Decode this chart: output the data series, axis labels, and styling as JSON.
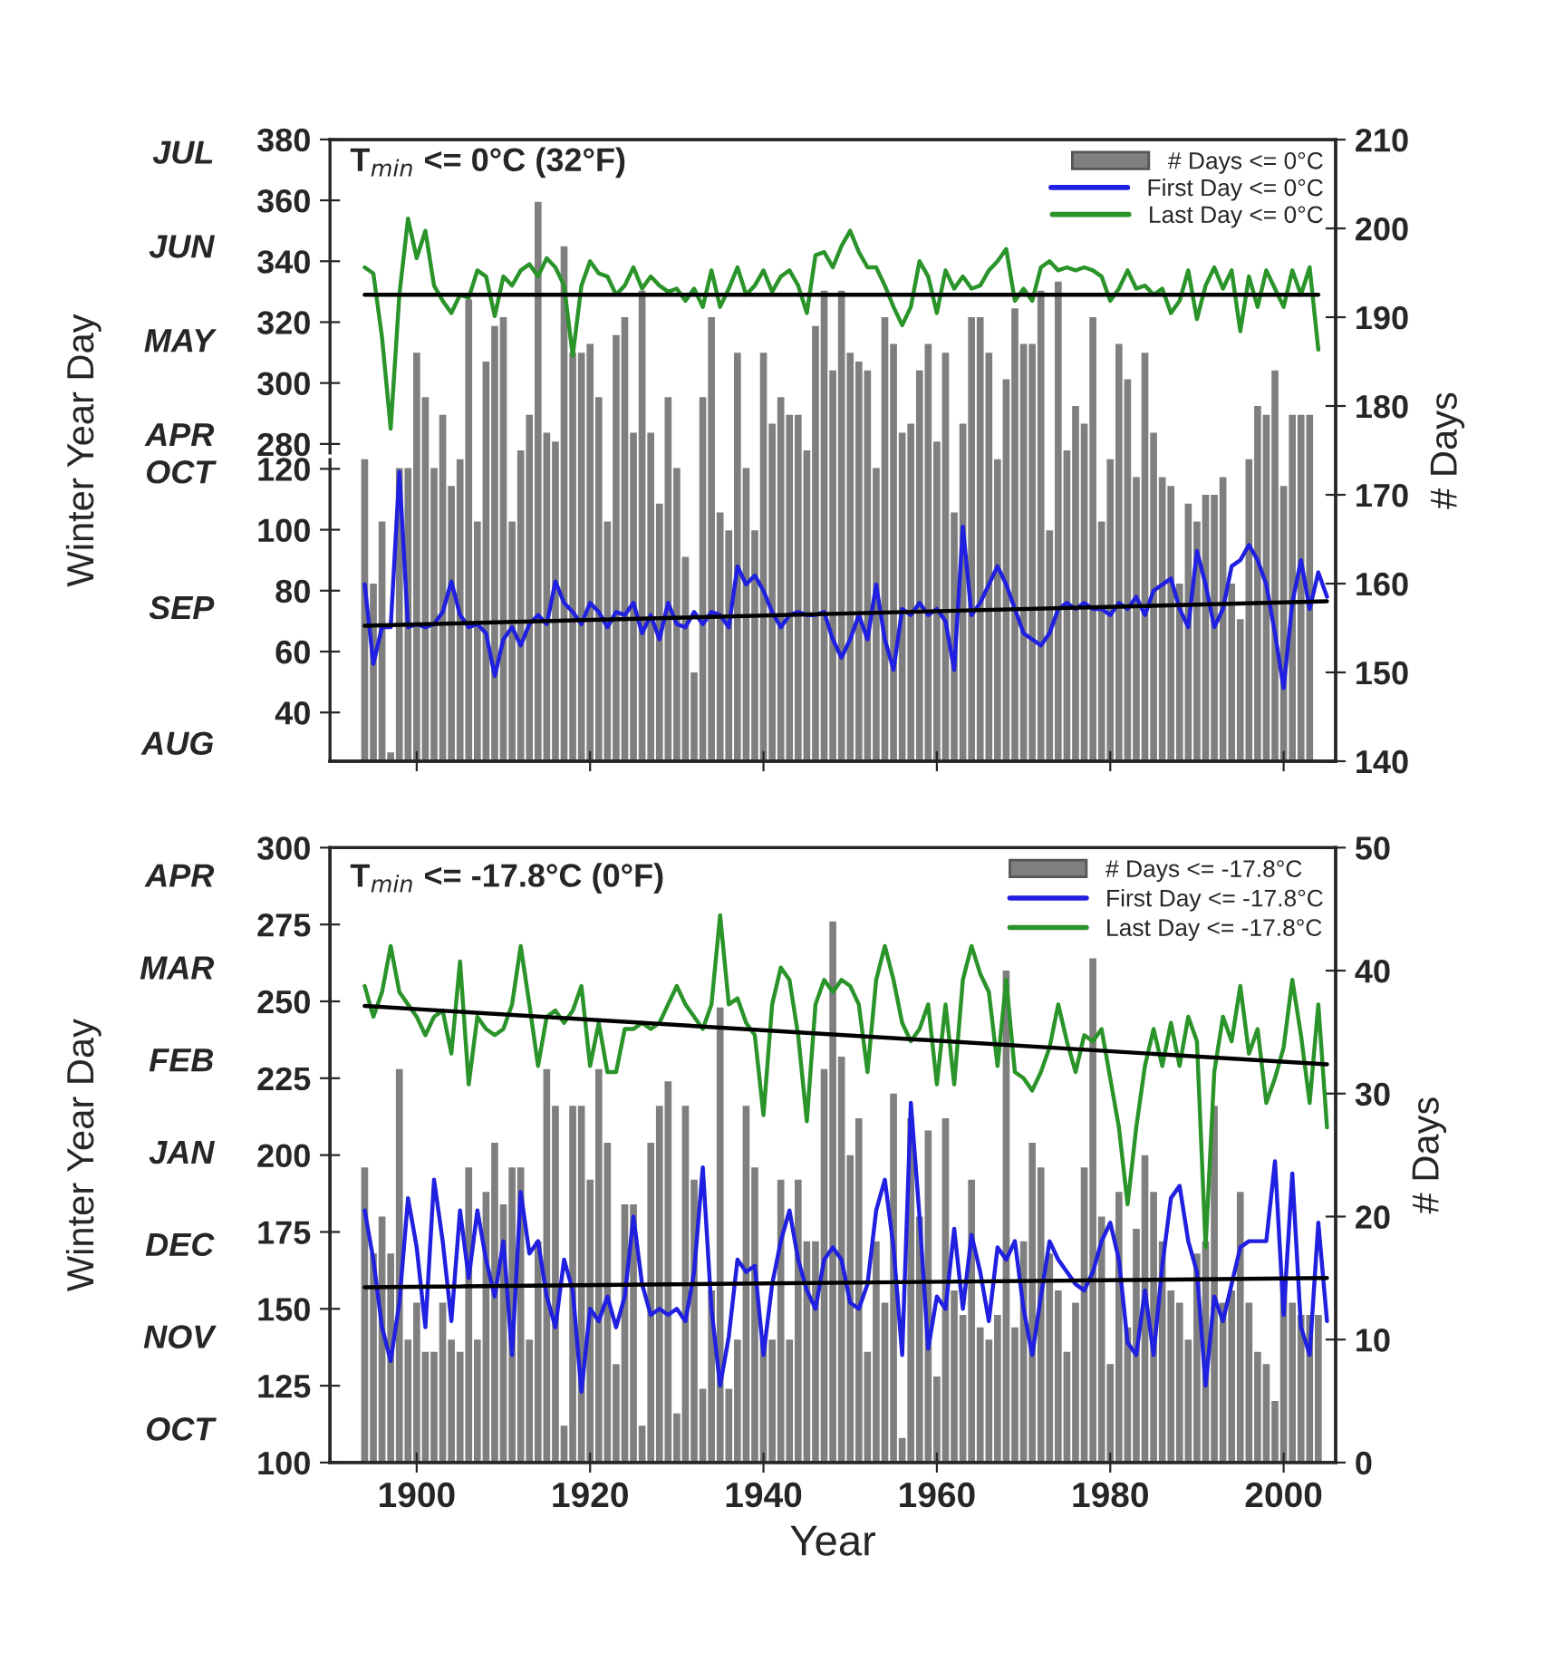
{
  "chart_data": [
    {
      "type": "bar",
      "xlim": [
        1890,
        2006
      ],
      "xticks": [
        1900,
        1920,
        1940,
        1960,
        1980,
        2000
      ],
      "tick_labels": "y",
      "ylabel": "Winter Year Day",
      "y2label": "# Days",
      "y2lim": [
        140,
        210
      ],
      "y2ticks": [
        140,
        150,
        160,
        170,
        180,
        190,
        200,
        210
      ],
      "legend": "top right",
      "series": [
        {
          "name": "# Days <= 0°C",
          "axis": "y2",
          "color": "#7f7f7f",
          "x": [
            1894,
            1895,
            1896,
            1897,
            1898,
            1899,
            1900,
            1901,
            1902,
            1903,
            1904,
            1905,
            1906,
            1907,
            1908,
            1909,
            1910,
            1911,
            1912,
            1913,
            1914,
            1915,
            1916,
            1917,
            1918,
            1919,
            1920,
            1921,
            1922,
            1923,
            1924,
            1925,
            1926,
            1927,
            1928,
            1929,
            1930,
            1931,
            1932,
            1933,
            1934,
            1935,
            1936,
            1937,
            1938,
            1939,
            1940,
            1941,
            1942,
            1943,
            1944,
            1945,
            1946,
            1947,
            1948,
            1949,
            1950,
            1951,
            1952,
            1953,
            1954,
            1955,
            1956,
            1957,
            1958,
            1959,
            1960,
            1961,
            1962,
            1963,
            1964,
            1965,
            1966,
            1967,
            1968,
            1969,
            1970,
            1971,
            1972,
            1973,
            1974,
            1975,
            1976,
            1977,
            1978,
            1979,
            1980,
            1981,
            1982,
            1983,
            1984,
            1985,
            1986,
            1987,
            1988,
            1989,
            1990,
            1991,
            1992,
            1993,
            1994,
            1995,
            1996,
            1997,
            1998,
            1999,
            2000,
            2001,
            2002,
            2003
          ],
          "values": [
            174,
            160,
            167,
            141,
            173,
            173,
            186,
            181,
            173,
            179,
            171,
            174,
            192,
            167,
            185,
            189,
            190,
            167,
            175,
            179,
            203,
            177,
            176,
            198,
            186,
            186,
            187,
            181,
            167,
            188,
            190,
            177,
            193,
            177,
            169,
            181,
            173,
            163,
            150,
            181,
            190,
            168,
            166,
            186,
            173,
            166,
            186,
            178,
            181,
            179,
            179,
            175,
            189,
            193,
            184,
            193,
            186,
            185,
            184,
            173,
            190,
            187,
            177,
            178,
            184,
            187,
            176,
            186,
            168,
            178,
            190,
            190,
            186,
            174,
            183,
            191,
            187,
            187,
            193,
            166,
            194,
            175,
            180,
            178,
            190,
            167,
            174,
            187,
            183,
            172,
            186,
            177,
            172,
            171,
            160,
            169,
            167,
            170,
            170,
            172,
            160,
            156,
            174,
            180,
            179,
            184,
            171,
            179,
            179,
            179
          ]
        }
      ]
    },
    {
      "type": "line",
      "xlim": [
        1890,
        2006
      ],
      "tick_labels": "y",
      "ylim": [
        24,
        123
      ],
      "yticks": [
        40,
        60,
        80,
        100,
        120
      ],
      "annotations": [
        "OCT",
        "SEP",
        "AUG"
      ],
      "legend": "top right",
      "series": [
        {
          "name": "First Day <= 0°C",
          "color": "#2020e0",
          "x": [
            1894,
            1895,
            1896,
            1897,
            1898,
            1899,
            1900,
            1901,
            1902,
            1903,
            1904,
            1905,
            1906,
            1907,
            1908,
            1909,
            1910,
            1911,
            1912,
            1913,
            1914,
            1915,
            1916,
            1917,
            1918,
            1919,
            1920,
            1921,
            1922,
            1923,
            1924,
            1925,
            1926,
            1927,
            1928,
            1929,
            1930,
            1931,
            1932,
            1933,
            1934,
            1935,
            1936,
            1937,
            1938,
            1939,
            1940,
            1941,
            1942,
            1943,
            1944,
            1945,
            1946,
            1947,
            1948,
            1949,
            1950,
            1951,
            1952,
            1953,
            1954,
            1955,
            1956,
            1957,
            1958,
            1959,
            1960,
            1961,
            1962,
            1963,
            1964,
            1965,
            1966,
            1967,
            1968,
            1969,
            1970,
            1971,
            1972,
            1973,
            1974,
            1975,
            1976,
            1977,
            1978,
            1979,
            1980,
            1981,
            1982,
            1983,
            1984,
            1985,
            1986,
            1987,
            1988,
            1989,
            1990,
            1991,
            1992,
            1993,
            1994,
            1995,
            1996,
            1997,
            1998,
            1999,
            2000,
            2001,
            2002,
            2003,
            2004,
            2005
          ],
          "values": [
            82,
            56,
            68,
            68,
            119,
            68,
            69,
            68,
            69,
            73,
            83,
            72,
            68,
            69,
            66,
            52,
            64,
            68,
            62,
            69,
            72,
            69,
            83,
            76,
            73,
            69,
            76,
            73,
            68,
            73,
            72,
            76,
            66,
            72,
            64,
            76,
            69,
            68,
            73,
            69,
            73,
            72,
            68,
            88,
            82,
            85,
            80,
            73,
            68,
            72,
            73,
            72,
            72,
            73,
            64,
            58,
            64,
            72,
            64,
            82,
            64,
            54,
            74,
            72,
            76,
            72,
            74,
            70,
            54,
            101,
            72,
            76,
            82,
            88,
            82,
            74,
            66,
            64,
            62,
            66,
            74,
            76,
            74,
            76,
            74,
            74,
            72,
            76,
            74,
            78,
            72,
            80,
            82,
            84,
            74,
            68,
            93,
            82,
            68,
            74,
            88,
            90,
            95,
            90,
            82,
            66,
            48,
            76,
            90,
            74,
            86,
            78
          ]
        },
        {
          "color": "#000000",
          "x": [
            1894,
            2005
          ],
          "values": [
            68.5,
            76.5
          ]
        }
      ]
    },
    {
      "type": "line",
      "xlim": [
        1890,
        2006
      ],
      "tick_labels": "y",
      "ylim": [
        277,
        380
      ],
      "yticks": [
        280,
        300,
        320,
        340,
        360,
        380
      ],
      "title": "T$_{min}$ <= 0°C (32°F)",
      "annotations": [
        "JUL",
        "JUN",
        "MAY",
        "APR"
      ],
      "legend": "top right",
      "series": [
        {
          "name": "Last Day <= 0°C",
          "color": "#2a942a",
          "x": [
            1894,
            1895,
            1896,
            1897,
            1898,
            1899,
            1900,
            1901,
            1902,
            1903,
            1904,
            1905,
            1906,
            1907,
            1908,
            1909,
            1910,
            1911,
            1912,
            1913,
            1914,
            1915,
            1916,
            1917,
            1918,
            1919,
            1920,
            1921,
            1922,
            1923,
            1924,
            1925,
            1926,
            1927,
            1928,
            1929,
            1930,
            1931,
            1932,
            1933,
            1934,
            1935,
            1936,
            1937,
            1938,
            1939,
            1940,
            1941,
            1942,
            1943,
            1944,
            1945,
            1946,
            1947,
            1948,
            1949,
            1950,
            1951,
            1952,
            1953,
            1954,
            1955,
            1956,
            1957,
            1958,
            1959,
            1960,
            1961,
            1962,
            1963,
            1964,
            1965,
            1966,
            1967,
            1968,
            1969,
            1970,
            1971,
            1972,
            1973,
            1974,
            1975,
            1976,
            1977,
            1978,
            1979,
            1980,
            1981,
            1982,
            1983,
            1984,
            1985,
            1986,
            1987,
            1988,
            1989,
            1990,
            1991,
            1992,
            1993,
            1994,
            1995,
            1996,
            1997,
            1998,
            1999,
            2000,
            2001,
            2002,
            2003,
            2004
          ],
          "values": [
            338,
            336,
            315,
            285,
            329,
            354,
            341,
            350,
            332,
            327,
            323,
            329,
            328,
            337,
            335,
            322,
            335,
            332,
            337,
            339,
            335,
            341,
            338,
            332,
            309,
            332,
            340,
            336,
            335,
            329,
            332,
            338,
            331,
            335,
            332,
            330,
            331,
            327,
            331,
            325,
            337,
            325,
            331,
            338,
            329,
            332,
            337,
            330,
            335,
            337,
            332,
            323,
            342,
            343,
            338,
            345,
            350,
            343,
            338,
            338,
            332,
            325,
            319,
            325,
            340,
            335,
            323,
            337,
            331,
            335,
            331,
            332,
            337,
            340,
            344,
            327,
            331,
            327,
            338,
            340,
            337,
            338,
            337,
            338,
            337,
            335,
            327,
            331,
            337,
            331,
            332,
            329,
            331,
            323,
            327,
            337,
            321,
            332,
            338,
            331,
            337,
            317,
            335,
            325,
            337,
            331,
            325,
            337,
            329,
            338,
            311
          ]
        },
        {
          "color": "#000000",
          "x": [
            1894,
            2004
          ],
          "values": [
            329,
            329
          ]
        }
      ]
    },
    {
      "type": "bar",
      "title": "T$_{min}$ <= -17.8°C (0°F)",
      "annotations": [
        "APR",
        "MAR",
        "FEB",
        "JAN",
        "DEC",
        "NOV",
        "OCT"
      ],
      "xlim": [
        1890,
        2006
      ],
      "xticks": [
        1900,
        1920,
        1940,
        1960,
        1980,
        2000
      ],
      "xlabel": "Year",
      "ylabel": "Winter Year Day",
      "y2label": "# Days",
      "ylim": [
        100,
        300
      ],
      "yticks": [
        100,
        125,
        150,
        175,
        200,
        225,
        250,
        275,
        300
      ],
      "y2lim": [
        0,
        50
      ],
      "y2ticks": [
        0,
        10,
        20,
        30,
        40,
        50
      ],
      "legend": "top right",
      "series": [
        {
          "name": "# Days <= -17.8°C",
          "axis": "y2",
          "color": "#7f7f7f",
          "x": [
            1894,
            1895,
            1896,
            1897,
            1898,
            1899,
            1900,
            1901,
            1902,
            1903,
            1904,
            1905,
            1906,
            1907,
            1908,
            1909,
            1910,
            1911,
            1912,
            1913,
            1914,
            1915,
            1916,
            1917,
            1918,
            1919,
            1920,
            1921,
            1922,
            1923,
            1924,
            1925,
            1926,
            1927,
            1928,
            1929,
            1930,
            1931,
            1932,
            1933,
            1934,
            1935,
            1936,
            1937,
            1938,
            1939,
            1940,
            1941,
            1942,
            1943,
            1944,
            1945,
            1946,
            1947,
            1948,
            1949,
            1950,
            1951,
            1952,
            1953,
            1954,
            1955,
            1956,
            1957,
            1958,
            1959,
            1960,
            1961,
            1962,
            1963,
            1964,
            1965,
            1966,
            1967,
            1968,
            1969,
            1970,
            1971,
            1972,
            1973,
            1974,
            1975,
            1976,
            1977,
            1978,
            1979,
            1980,
            1981,
            1982,
            1983,
            1984,
            1985,
            1986,
            1987,
            1988,
            1989,
            1990,
            1991,
            1992,
            1993,
            1994,
            1995,
            1996,
            1997,
            1998,
            1999,
            2000,
            2001,
            2002,
            2003,
            2004
          ],
          "values": [
            24,
            17,
            20,
            17,
            32,
            10,
            13,
            9,
            9,
            13,
            10,
            9,
            24,
            10,
            22,
            26,
            21,
            24,
            24,
            10,
            18,
            32,
            29,
            3,
            29,
            29,
            23,
            32,
            26,
            8,
            21,
            21,
            3,
            26,
            29,
            31,
            4,
            29,
            23,
            6,
            14,
            37,
            6,
            10,
            29,
            24,
            10,
            10,
            23,
            10,
            23,
            18,
            18,
            32,
            44,
            33,
            25,
            28,
            9,
            18,
            13,
            30,
            2,
            28,
            20,
            27,
            7,
            28,
            14,
            12,
            23,
            11,
            10,
            12,
            40,
            11,
            18,
            26,
            24,
            17,
            14,
            9,
            13,
            24,
            41,
            20,
            8,
            22,
            11,
            19,
            25,
            22,
            18,
            14,
            13,
            10,
            17,
            18,
            29,
            13,
            14,
            22,
            13,
            9,
            8,
            5,
            15,
            13,
            12,
            12,
            12
          ]
        },
        {
          "name": "First Day <= -17.8°C",
          "type": "line",
          "axis": "y",
          "color": "#2020e0",
          "x": [
            1894,
            1895,
            1896,
            1897,
            1898,
            1899,
            1900,
            1901,
            1902,
            1903,
            1904,
            1905,
            1906,
            1907,
            1908,
            1909,
            1910,
            1911,
            1912,
            1913,
            1914,
            1915,
            1916,
            1917,
            1918,
            1919,
            1920,
            1921,
            1922,
            1923,
            1924,
            1925,
            1926,
            1927,
            1928,
            1929,
            1930,
            1931,
            1932,
            1933,
            1934,
            1935,
            1936,
            1937,
            1938,
            1939,
            1940,
            1941,
            1942,
            1943,
            1944,
            1945,
            1946,
            1947,
            1948,
            1949,
            1950,
            1951,
            1952,
            1953,
            1954,
            1955,
            1956,
            1957,
            1958,
            1959,
            1960,
            1961,
            1962,
            1963,
            1964,
            1965,
            1966,
            1967,
            1968,
            1969,
            1970,
            1971,
            1972,
            1973,
            1974,
            1975,
            1976,
            1977,
            1978,
            1979,
            1980,
            1981,
            1982,
            1983,
            1984,
            1985,
            1986,
            1987,
            1988,
            1989,
            1990,
            1991,
            1992,
            1993,
            1994,
            1995,
            1996,
            1997,
            1998,
            1999,
            2000,
            2001,
            2002,
            2003,
            2004,
            2005
          ],
          "values": [
            182,
            166,
            144,
            133,
            152,
            186,
            170,
            144,
            192,
            172,
            146,
            182,
            160,
            182,
            166,
            154,
            172,
            135,
            188,
            168,
            172,
            154,
            144,
            166,
            156,
            123,
            150,
            146,
            154,
            144,
            154,
            180,
            158,
            148,
            150,
            148,
            150,
            146,
            162,
            196,
            150,
            125,
            141,
            166,
            162,
            164,
            135,
            158,
            172,
            182,
            166,
            156,
            150,
            166,
            170,
            166,
            152,
            150,
            158,
            182,
            192,
            170,
            135,
            217,
            180,
            137,
            154,
            150,
            176,
            150,
            174,
            162,
            146,
            170,
            166,
            172,
            150,
            135,
            154,
            172,
            166,
            162,
            158,
            156,
            162,
            172,
            178,
            166,
            139,
            135,
            156,
            135,
            164,
            186,
            190,
            172,
            162,
            125,
            154,
            146,
            158,
            170,
            172,
            172,
            172,
            198,
            148,
            194,
            144,
            135,
            178,
            146
          ]
        },
        {
          "name": "Last Day <= -17.8°C",
          "type": "line",
          "axis": "y",
          "color": "#2a942a",
          "x": [
            1894,
            1895,
            1896,
            1897,
            1898,
            1899,
            1900,
            1901,
            1902,
            1903,
            1904,
            1905,
            1906,
            1907,
            1908,
            1909,
            1910,
            1911,
            1912,
            1913,
            1914,
            1915,
            1916,
            1917,
            1918,
            1919,
            1920,
            1921,
            1922,
            1923,
            1924,
            1925,
            1926,
            1927,
            1928,
            1929,
            1930,
            1931,
            1932,
            1933,
            1934,
            1935,
            1936,
            1937,
            1938,
            1939,
            1940,
            1941,
            1942,
            1943,
            1944,
            1945,
            1946,
            1947,
            1948,
            1949,
            1950,
            1951,
            1952,
            1953,
            1954,
            1955,
            1956,
            1957,
            1958,
            1959,
            1960,
            1961,
            1962,
            1963,
            1964,
            1965,
            1966,
            1967,
            1968,
            1969,
            1970,
            1971,
            1972,
            1973,
            1974,
            1975,
            1976,
            1977,
            1978,
            1979,
            1980,
            1981,
            1982,
            1983,
            1984,
            1985,
            1986,
            1987,
            1988,
            1989,
            1990,
            1991,
            1992,
            1993,
            1994,
            1995,
            1996,
            1997,
            1998,
            1999,
            2000,
            2001,
            2002,
            2003,
            2004,
            2005
          ],
          "values": [
            255,
            245,
            253,
            268,
            253,
            249,
            245,
            239,
            245,
            247,
            233,
            263,
            223,
            245,
            241,
            239,
            241,
            249,
            268,
            249,
            229,
            245,
            247,
            243,
            247,
            255,
            229,
            243,
            227,
            227,
            241,
            241,
            243,
            241,
            243,
            249,
            255,
            249,
            245,
            241,
            249,
            278,
            249,
            251,
            243,
            239,
            213,
            249,
            261,
            257,
            239,
            211,
            249,
            257,
            253,
            257,
            255,
            249,
            227,
            257,
            268,
            257,
            243,
            237,
            241,
            249,
            223,
            249,
            223,
            257,
            268,
            259,
            253,
            229,
            257,
            227,
            225,
            221,
            227,
            235,
            249,
            237,
            227,
            239,
            237,
            241,
            225,
            209,
            184,
            209,
            229,
            241,
            229,
            243,
            229,
            245,
            237,
            170,
            227,
            245,
            237,
            255,
            233,
            241,
            217,
            225,
            235,
            257,
            239,
            217,
            249,
            209
          ]
        },
        {
          "type": "line",
          "axis": "y",
          "color": "#000000",
          "x": [
            1894,
            2005
          ],
          "values": [
            248.5,
            229.5
          ]
        },
        {
          "type": "line",
          "axis": "y",
          "color": "#000000",
          "x": [
            1894,
            2005
          ],
          "values": [
            157,
            160
          ]
        }
      ]
    }
  ]
}
